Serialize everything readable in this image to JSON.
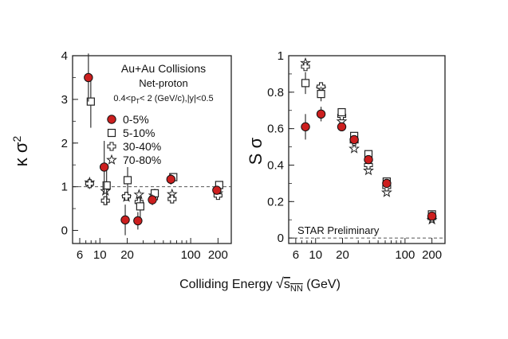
{
  "figure": {
    "xlabel_prefix": "Colliding Energy ",
    "xlabel_sqrt_sym": "√",
    "xlabel_s": "s",
    "xlabel_sub": "NN",
    "xlabel_unit": " (GeV)"
  },
  "chart_data": [
    {
      "type": "scatter",
      "panel": "left",
      "ylabel": "κ σ²",
      "ylabel_kappa": "κ σ",
      "ylabel_sup": "2",
      "x_scale": "log",
      "xlim": [
        5,
        280
      ],
      "ylim": [
        -0.3,
        4
      ],
      "x_ticks": [
        6,
        10,
        20,
        100,
        200
      ],
      "y_ticks": [
        0,
        1,
        2,
        3,
        4
      ],
      "reference_line": 1,
      "reference_style": "dashed",
      "title_lines": [
        "Au+Au Collisions",
        "Net-proton"
      ],
      "cut_text": {
        "pre": "0.4<p",
        "sub": "T",
        "post": "< 2 (GeV/c),|y|<0.5"
      },
      "legend_placement": "top-right",
      "series": [
        {
          "name": "0-5%",
          "marker": "filled-circle",
          "color": "#cc1f1f",
          "points": [
            [
              7.7,
              3.5,
              0.55
            ],
            [
              11.5,
              1.45,
              0.6
            ],
            [
              19.6,
              0.24,
              0.35
            ],
            [
              27,
              0.22,
              0.2
            ],
            [
              39,
              0.7,
              0.12
            ],
            [
              62.4,
              1.17,
              0.12
            ],
            [
              200,
              0.92,
              0.08
            ]
          ]
        },
        {
          "name": "5-10%",
          "marker": "open-square",
          "color": "#222222",
          "points": [
            [
              7.7,
              2.95,
              0.6
            ],
            [
              11.5,
              1.03,
              0.45
            ],
            [
              19.6,
              1.15,
              0.3
            ],
            [
              27,
              0.55,
              0.25
            ],
            [
              39,
              0.85,
              0.1
            ],
            [
              62.4,
              1.22,
              0.08
            ],
            [
              200,
              1.04,
              0.05
            ]
          ]
        },
        {
          "name": "30-40%",
          "marker": "open-cross",
          "color": "#222222",
          "points": [
            [
              7.7,
              1.07,
              0.12
            ],
            [
              11.5,
              0.68,
              0.1
            ],
            [
              19.6,
              0.78,
              0.08
            ],
            [
              27,
              0.65,
              0.06
            ],
            [
              39,
              0.74,
              0.05
            ],
            [
              62.4,
              0.72,
              0.05
            ],
            [
              200,
              0.8,
              0.03
            ]
          ]
        },
        {
          "name": "70-80%",
          "marker": "open-star",
          "color": "#222222",
          "points": [
            [
              7.7,
              1.1,
              0.05
            ],
            [
              11.5,
              0.9,
              0.05
            ],
            [
              19.6,
              0.76,
              0.04
            ],
            [
              27,
              0.82,
              0.04
            ],
            [
              39,
              0.8,
              0.03
            ],
            [
              62.4,
              0.83,
              0.03
            ],
            [
              200,
              0.85,
              0.02
            ]
          ]
        }
      ]
    },
    {
      "type": "scatter",
      "panel": "right",
      "ylabel": "S σ",
      "x_scale": "log",
      "xlim": [
        5,
        280
      ],
      "ylim": [
        -0.03,
        1
      ],
      "x_ticks": [
        6,
        10,
        20,
        100,
        200
      ],
      "y_ticks": [
        0,
        0.2,
        0.4,
        0.6,
        0.8,
        1
      ],
      "y_tick_labels": [
        "0",
        "0.2",
        "0.4",
        "0.6",
        "0.8",
        "1"
      ],
      "reference_line": 0,
      "reference_style": "dashed",
      "annotation": "STAR Preliminary",
      "series": [
        {
          "name": "0-5%",
          "marker": "filled-circle",
          "color": "#cc1f1f",
          "points": [
            [
              7.7,
              0.61,
              0.07
            ],
            [
              11.5,
              0.68,
              0.04
            ],
            [
              19.6,
              0.61,
              0.02
            ],
            [
              27,
              0.54,
              0.02
            ],
            [
              39,
              0.43,
              0.01
            ],
            [
              62.4,
              0.3,
              0.01
            ],
            [
              200,
              0.12,
              0.01
            ]
          ]
        },
        {
          "name": "5-10%",
          "marker": "open-square",
          "color": "#222222",
          "points": [
            [
              7.7,
              0.85,
              0.06
            ],
            [
              11.5,
              0.79,
              0.04
            ],
            [
              19.6,
              0.69,
              0.02
            ],
            [
              27,
              0.56,
              0.02
            ],
            [
              39,
              0.46,
              0.01
            ],
            [
              62.4,
              0.31,
              0.01
            ],
            [
              200,
              0.13,
              0.01
            ]
          ]
        },
        {
          "name": "30-40%",
          "marker": "open-cross",
          "color": "#222222",
          "points": [
            [
              7.7,
              0.94,
              0.02
            ],
            [
              11.5,
              0.83,
              0.02
            ],
            [
              19.6,
              0.67,
              0.01
            ],
            [
              27,
              0.53,
              0.01
            ],
            [
              39,
              0.4,
              0.01
            ],
            [
              62.4,
              0.28,
              0.01
            ],
            [
              200,
              0.11,
              0.005
            ]
          ]
        },
        {
          "name": "70-80%",
          "marker": "open-star",
          "color": "#222222",
          "points": [
            [
              7.7,
              0.96,
              0.01
            ],
            [
              11.5,
              0.82,
              0.01
            ],
            [
              19.6,
              0.64,
              0.01
            ],
            [
              27,
              0.49,
              0.01
            ],
            [
              39,
              0.37,
              0.01
            ],
            [
              62.4,
              0.25,
              0.005
            ],
            [
              200,
              0.1,
              0.005
            ]
          ]
        }
      ]
    }
  ]
}
